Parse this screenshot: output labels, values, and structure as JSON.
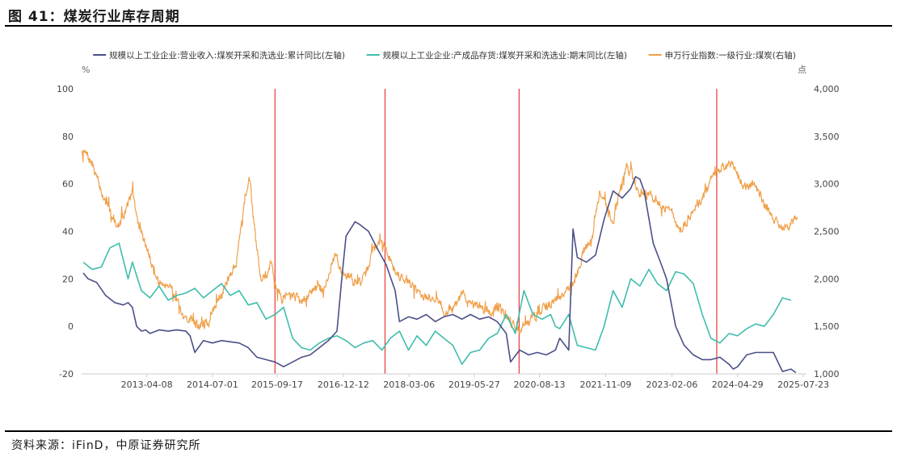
{
  "figure": {
    "title": "图 41：煤炭行业库存周期",
    "source": "资料来源：iFinD，中原证券研究所"
  },
  "chart_data": {
    "type": "line",
    "title": "",
    "y_left": {
      "unit": "%",
      "ylim": [
        -20,
        100
      ],
      "ticks": [
        -20,
        0,
        20,
        40,
        60,
        80,
        100
      ]
    },
    "y_right": {
      "unit": "点",
      "ylim": [
        1000,
        4000
      ],
      "ticks": [
        "1,000",
        "1,500",
        "2,000",
        "2,500",
        "3,000",
        "3,500",
        "4,000"
      ],
      "tick_values": [
        1000,
        1500,
        2000,
        2500,
        3000,
        3500,
        4000
      ]
    },
    "x_range": [
      2012.05,
      2025.62
    ],
    "x_ticks": [
      {
        "label": "2013-04-08",
        "t": 2013.27
      },
      {
        "label": "2014-07-01",
        "t": 2014.5
      },
      {
        "label": "2015-09-17",
        "t": 2015.71
      },
      {
        "label": "2016-12-12",
        "t": 2016.95
      },
      {
        "label": "2018-03-06",
        "t": 2018.18
      },
      {
        "label": "2019-05-27",
        "t": 2019.4
      },
      {
        "label": "2020-08-13",
        "t": 2020.62
      },
      {
        "label": "2021-11-09",
        "t": 2021.86
      },
      {
        "label": "2023-02-06",
        "t": 2023.1
      },
      {
        "label": "2024-04-29",
        "t": 2024.33
      },
      {
        "label": "2025-07-23",
        "t": 2025.56
      }
    ],
    "cycle_markers": [
      2015.67,
      2017.73,
      2020.24,
      2023.94
    ],
    "colors": {
      "revenue": "#4a5088",
      "inventory": "#3fbdac",
      "index": "#f0a04b",
      "marker": "#e53935",
      "axis": "#cccccc",
      "label": "#444444"
    },
    "series": [
      {
        "name": "规模以上工业企业:营业收入:煤炭开采和洗选业:累计同比(左轴)",
        "axis": "left",
        "color_key": "revenue",
        "points": [
          [
            2012.08,
            22.5
          ],
          [
            2012.17,
            20
          ],
          [
            2012.33,
            18.5
          ],
          [
            2012.5,
            13
          ],
          [
            2012.67,
            10
          ],
          [
            2012.83,
            9
          ],
          [
            2012.92,
            10
          ],
          [
            2013.0,
            8
          ],
          [
            2013.08,
            0
          ],
          [
            2013.17,
            -2
          ],
          [
            2013.25,
            -1.5
          ],
          [
            2013.33,
            -3
          ],
          [
            2013.5,
            -1.5
          ],
          [
            2013.67,
            -2
          ],
          [
            2013.83,
            -1.5
          ],
          [
            2014.0,
            -2
          ],
          [
            2014.08,
            -4
          ],
          [
            2014.17,
            -11
          ],
          [
            2014.33,
            -6
          ],
          [
            2014.5,
            -7
          ],
          [
            2014.67,
            -6
          ],
          [
            2014.83,
            -6.5
          ],
          [
            2015.0,
            -7
          ],
          [
            2015.17,
            -9
          ],
          [
            2015.33,
            -13
          ],
          [
            2015.5,
            -14
          ],
          [
            2015.67,
            -15
          ],
          [
            2015.83,
            -17
          ],
          [
            2016.0,
            -15
          ],
          [
            2016.17,
            -13
          ],
          [
            2016.33,
            -12
          ],
          [
            2016.5,
            -9
          ],
          [
            2016.67,
            -6
          ],
          [
            2016.83,
            -2
          ],
          [
            2016.92,
            20
          ],
          [
            2017.0,
            38
          ],
          [
            2017.17,
            44
          ],
          [
            2017.25,
            43
          ],
          [
            2017.42,
            40
          ],
          [
            2017.58,
            33
          ],
          [
            2017.75,
            26
          ],
          [
            2017.92,
            15
          ],
          [
            2018.0,
            2
          ],
          [
            2018.17,
            4
          ],
          [
            2018.33,
            3
          ],
          [
            2018.5,
            5
          ],
          [
            2018.67,
            2
          ],
          [
            2018.83,
            4
          ],
          [
            2019.0,
            5
          ],
          [
            2019.17,
            3
          ],
          [
            2019.33,
            5
          ],
          [
            2019.5,
            3
          ],
          [
            2019.67,
            4
          ],
          [
            2019.83,
            2
          ],
          [
            2020.0,
            -3
          ],
          [
            2020.08,
            -15
          ],
          [
            2020.25,
            -10
          ],
          [
            2020.42,
            -12
          ],
          [
            2020.58,
            -11
          ],
          [
            2020.75,
            -12
          ],
          [
            2020.92,
            -10
          ],
          [
            2021.0,
            -5
          ],
          [
            2021.17,
            -10
          ],
          [
            2021.25,
            41
          ],
          [
            2021.33,
            29
          ],
          [
            2021.5,
            27
          ],
          [
            2021.67,
            30
          ],
          [
            2021.83,
            45
          ],
          [
            2022.0,
            57
          ],
          [
            2022.17,
            54
          ],
          [
            2022.33,
            58
          ],
          [
            2022.42,
            63
          ],
          [
            2022.5,
            62
          ],
          [
            2022.58,
            57
          ],
          [
            2022.75,
            35
          ],
          [
            2022.92,
            25
          ],
          [
            2023.0,
            20
          ],
          [
            2023.17,
            0
          ],
          [
            2023.33,
            -8
          ],
          [
            2023.5,
            -12
          ],
          [
            2023.67,
            -14
          ],
          [
            2023.83,
            -14
          ],
          [
            2024.0,
            -13
          ],
          [
            2024.17,
            -16
          ],
          [
            2024.25,
            -18
          ],
          [
            2024.33,
            -17
          ],
          [
            2024.5,
            -12
          ],
          [
            2024.67,
            -11
          ],
          [
            2024.83,
            -11
          ],
          [
            2025.0,
            -11
          ],
          [
            2025.17,
            -19
          ],
          [
            2025.33,
            -18
          ],
          [
            2025.42,
            -19.5
          ]
        ]
      },
      {
        "name": "规模以上工业企业:产成品存货:煤炭开采和洗选业:期末同比(左轴)",
        "axis": "left",
        "color_key": "inventory",
        "points": [
          [
            2012.08,
            27
          ],
          [
            2012.25,
            24
          ],
          [
            2012.42,
            25
          ],
          [
            2012.58,
            33
          ],
          [
            2012.75,
            35
          ],
          [
            2012.92,
            20
          ],
          [
            2013.0,
            27
          ],
          [
            2013.17,
            15
          ],
          [
            2013.33,
            12
          ],
          [
            2013.5,
            17
          ],
          [
            2013.67,
            11
          ],
          [
            2013.83,
            13
          ],
          [
            2014.0,
            14
          ],
          [
            2014.17,
            16
          ],
          [
            2014.33,
            12
          ],
          [
            2014.5,
            15
          ],
          [
            2014.67,
            18
          ],
          [
            2014.83,
            13
          ],
          [
            2015.0,
            15
          ],
          [
            2015.17,
            9
          ],
          [
            2015.33,
            10
          ],
          [
            2015.5,
            3
          ],
          [
            2015.67,
            5
          ],
          [
            2015.83,
            8
          ],
          [
            2016.0,
            -5
          ],
          [
            2016.17,
            -9
          ],
          [
            2016.33,
            -10
          ],
          [
            2016.5,
            -7
          ],
          [
            2016.67,
            -5
          ],
          [
            2016.83,
            -4
          ],
          [
            2017.0,
            -6
          ],
          [
            2017.17,
            -9
          ],
          [
            2017.33,
            -7
          ],
          [
            2017.5,
            -6
          ],
          [
            2017.67,
            -10
          ],
          [
            2017.83,
            -5
          ],
          [
            2018.0,
            -2
          ],
          [
            2018.17,
            -10
          ],
          [
            2018.33,
            -4
          ],
          [
            2018.5,
            -8
          ],
          [
            2018.67,
            -2
          ],
          [
            2018.83,
            -5
          ],
          [
            2019.0,
            -8
          ],
          [
            2019.17,
            -16
          ],
          [
            2019.33,
            -11
          ],
          [
            2019.5,
            -10
          ],
          [
            2019.67,
            -5
          ],
          [
            2019.83,
            -3
          ],
          [
            2020.0,
            5
          ],
          [
            2020.17,
            -3
          ],
          [
            2020.33,
            15
          ],
          [
            2020.5,
            5
          ],
          [
            2020.67,
            3
          ],
          [
            2020.83,
            5
          ],
          [
            2020.92,
            0
          ],
          [
            2021.0,
            -1
          ],
          [
            2021.17,
            5
          ],
          [
            2021.33,
            -8
          ],
          [
            2021.5,
            -9
          ],
          [
            2021.67,
            -10
          ],
          [
            2021.83,
            0
          ],
          [
            2022.0,
            15
          ],
          [
            2022.17,
            8
          ],
          [
            2022.33,
            20
          ],
          [
            2022.5,
            17
          ],
          [
            2022.67,
            24
          ],
          [
            2022.83,
            18
          ],
          [
            2023.0,
            15
          ],
          [
            2023.17,
            23
          ],
          [
            2023.33,
            22
          ],
          [
            2023.5,
            18
          ],
          [
            2023.67,
            5
          ],
          [
            2023.83,
            -5
          ],
          [
            2024.0,
            -7
          ],
          [
            2024.17,
            -3
          ],
          [
            2024.33,
            -4
          ],
          [
            2024.5,
            -1
          ],
          [
            2024.67,
            1
          ],
          [
            2024.83,
            0
          ],
          [
            2025.0,
            5
          ],
          [
            2025.17,
            12
          ],
          [
            2025.33,
            11
          ]
        ]
      },
      {
        "name": "申万行业指数:一级行业:煤炭(右轴)",
        "axis": "right",
        "color_key": "index",
        "noise": 80,
        "seed": 7,
        "points": [
          [
            2012.05,
            3350
          ],
          [
            2012.15,
            3300
          ],
          [
            2012.25,
            3200
          ],
          [
            2012.4,
            2950
          ],
          [
            2012.5,
            2800
          ],
          [
            2012.6,
            2700
          ],
          [
            2012.75,
            2550
          ],
          [
            2012.85,
            2700
          ],
          [
            2013.0,
            2900
          ],
          [
            2013.1,
            2600
          ],
          [
            2013.25,
            2350
          ],
          [
            2013.4,
            2100
          ],
          [
            2013.5,
            1950
          ],
          [
            2013.7,
            1950
          ],
          [
            2013.85,
            1750
          ],
          [
            2013.95,
            1550
          ],
          [
            2014.1,
            1600
          ],
          [
            2014.25,
            1500
          ],
          [
            2014.45,
            1550
          ],
          [
            2014.6,
            1800
          ],
          [
            2014.8,
            2000
          ],
          [
            2014.95,
            2200
          ],
          [
            2015.1,
            2800
          ],
          [
            2015.2,
            3050
          ],
          [
            2015.25,
            2700
          ],
          [
            2015.4,
            2050
          ],
          [
            2015.5,
            2000
          ],
          [
            2015.6,
            2200
          ],
          [
            2015.7,
            1900
          ],
          [
            2015.8,
            1800
          ],
          [
            2016.0,
            1850
          ],
          [
            2016.2,
            1750
          ],
          [
            2016.4,
            1900
          ],
          [
            2016.6,
            1900
          ],
          [
            2016.8,
            2250
          ],
          [
            2016.9,
            2100
          ],
          [
            2017.0,
            2050
          ],
          [
            2017.2,
            1950
          ],
          [
            2017.35,
            2000
          ],
          [
            2017.5,
            2300
          ],
          [
            2017.65,
            2400
          ],
          [
            2017.75,
            2300
          ],
          [
            2017.95,
            2050
          ],
          [
            2018.1,
            2000
          ],
          [
            2018.3,
            1900
          ],
          [
            2018.5,
            1800
          ],
          [
            2018.7,
            1800
          ],
          [
            2018.85,
            1650
          ],
          [
            2019.0,
            1700
          ],
          [
            2019.2,
            1850
          ],
          [
            2019.35,
            1700
          ],
          [
            2019.5,
            1700
          ],
          [
            2019.7,
            1650
          ],
          [
            2019.85,
            1700
          ],
          [
            2020.0,
            1600
          ],
          [
            2020.2,
            1450
          ],
          [
            2020.4,
            1550
          ],
          [
            2020.55,
            1600
          ],
          [
            2020.75,
            1700
          ],
          [
            2020.95,
            1800
          ],
          [
            2021.1,
            1850
          ],
          [
            2021.3,
            2000
          ],
          [
            2021.45,
            2300
          ],
          [
            2021.6,
            2400
          ],
          [
            2021.75,
            2900
          ],
          [
            2021.9,
            2750
          ],
          [
            2022.0,
            2600
          ],
          [
            2022.1,
            2850
          ],
          [
            2022.25,
            3200
          ],
          [
            2022.35,
            3100
          ],
          [
            2022.5,
            2900
          ],
          [
            2022.65,
            2900
          ],
          [
            2022.8,
            2850
          ],
          [
            2022.95,
            2750
          ],
          [
            2023.1,
            2700
          ],
          [
            2023.25,
            2500
          ],
          [
            2023.4,
            2600
          ],
          [
            2023.55,
            2800
          ],
          [
            2023.7,
            2850
          ],
          [
            2023.85,
            3050
          ],
          [
            2024.0,
            3150
          ],
          [
            2024.15,
            3200
          ],
          [
            2024.3,
            3150
          ],
          [
            2024.45,
            2950
          ],
          [
            2024.6,
            3000
          ],
          [
            2024.75,
            2900
          ],
          [
            2024.85,
            2750
          ],
          [
            2025.0,
            2650
          ],
          [
            2025.15,
            2550
          ],
          [
            2025.3,
            2550
          ],
          [
            2025.45,
            2650
          ]
        ]
      }
    ],
    "legend_position": "top-center"
  }
}
